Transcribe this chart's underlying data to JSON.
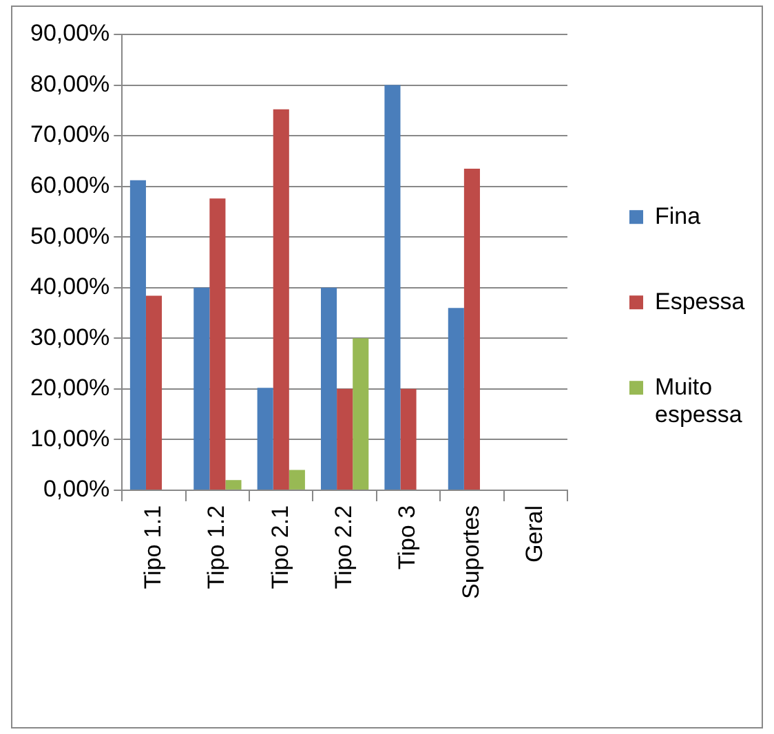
{
  "chart_data": {
    "type": "bar",
    "categories": [
      "Tipo 1.1",
      "Tipo 1.2",
      "Tipo 2.1",
      "Tipo 2.2",
      "Tipo 3",
      "Suportes",
      "Geral"
    ],
    "series": [
      {
        "name": "Fina",
        "color": "#4a7ebb",
        "values": [
          61.2,
          40,
          20.2,
          40,
          80,
          36,
          null
        ]
      },
      {
        "name": "Espessa",
        "color": "#be4b48",
        "values": [
          38.4,
          57.6,
          75.2,
          20,
          20,
          63.5,
          null
        ]
      },
      {
        "name": "Muito espessa",
        "color": "#98b954",
        "values": [
          null,
          2,
          4,
          30,
          null,
          null,
          null
        ]
      }
    ],
    "ylim": [
      0,
      90
    ],
    "yticks": [
      {
        "value": 0,
        "label": "0,00%"
      },
      {
        "value": 10,
        "label": "10,00%"
      },
      {
        "value": 20,
        "label": "20,00%"
      },
      {
        "value": 30,
        "label": "30,00%"
      },
      {
        "value": 40,
        "label": "40,00%"
      },
      {
        "value": 50,
        "label": "50,00%"
      },
      {
        "value": 60,
        "label": "60,00%"
      },
      {
        "value": 70,
        "label": "70,00%"
      },
      {
        "value": 80,
        "label": "80,00%"
      },
      {
        "value": 90,
        "label": "90,00%"
      }
    ],
    "grid": "y",
    "legend": "right"
  }
}
